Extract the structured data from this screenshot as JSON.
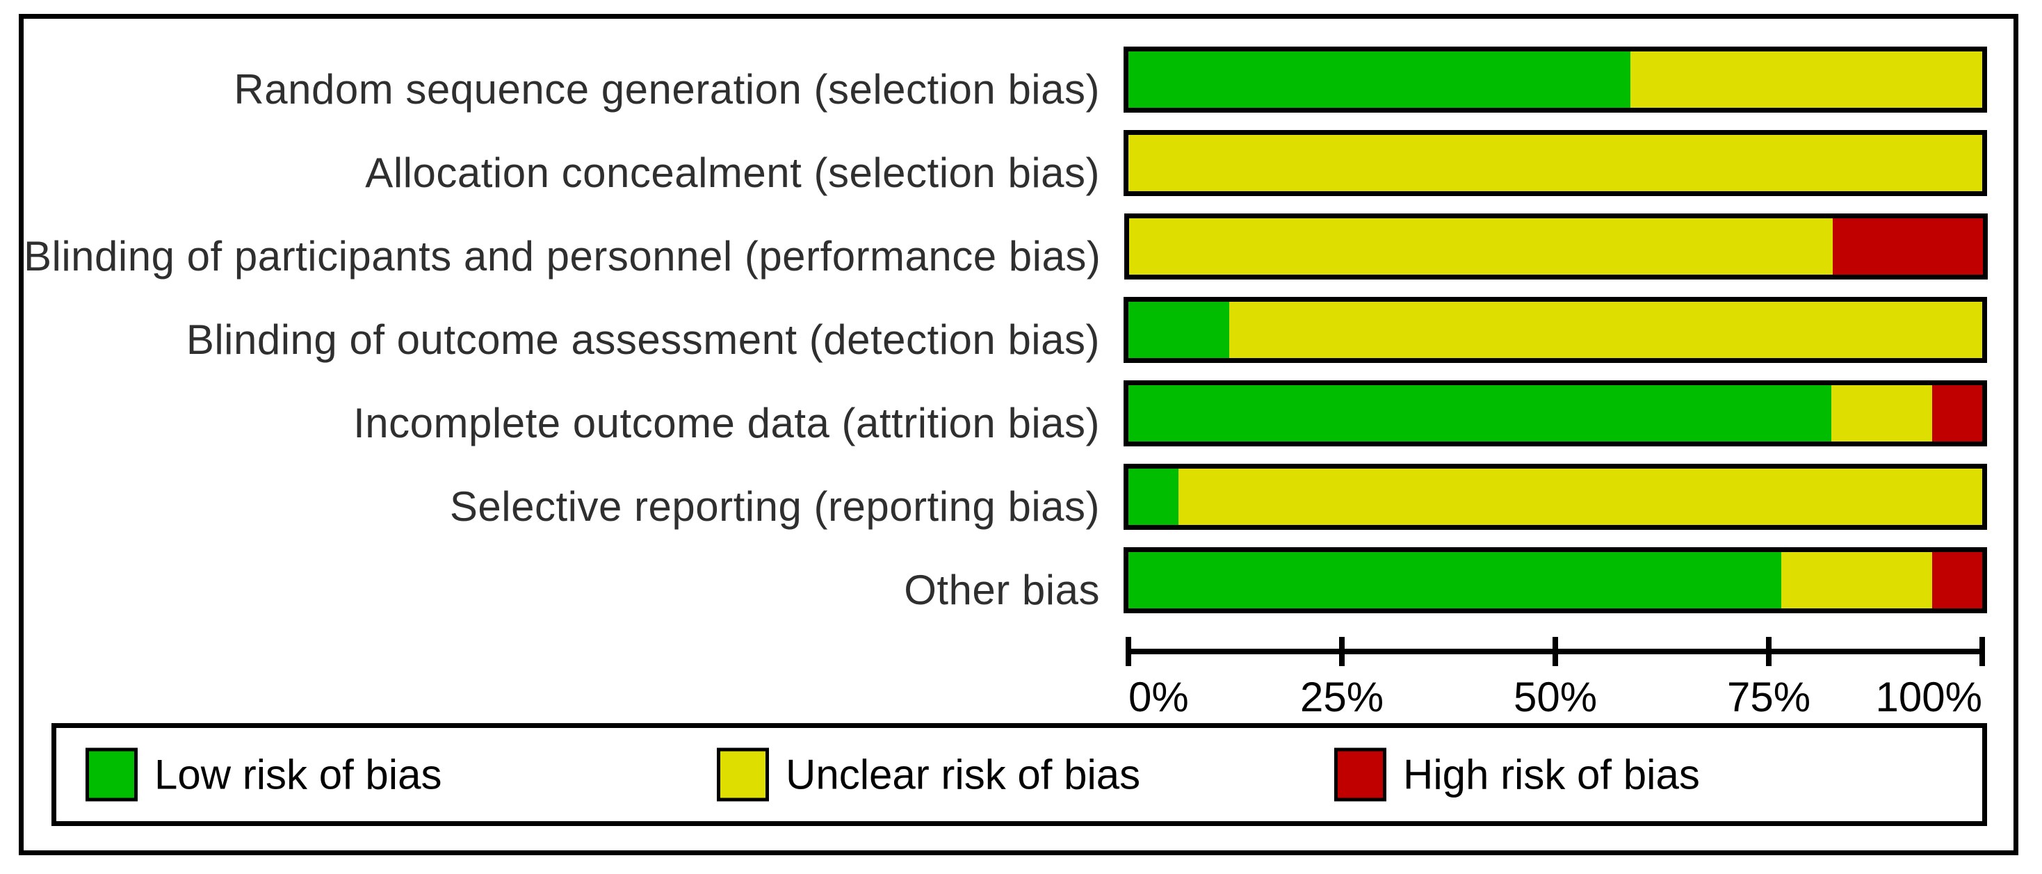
{
  "chart_data": {
    "type": "bar",
    "variant": "horizontal-stacked-100-percent",
    "description": "Risk of bias graph: review authors' judgements about each risk of bias item presented as percentages across all included studies",
    "categories": [
      "Random sequence generation (selection bias)",
      "Allocation concealment (selection bias)",
      "Blinding of participants and personnel (performance bias)",
      "Blinding of outcome assessment (detection bias)",
      "Incomplete outcome data (attrition bias)",
      "Selective reporting (reporting bias)",
      "Other bias"
    ],
    "series": [
      {
        "key": "low",
        "name": "Low risk of bias",
        "color": "#00bd00",
        "values": [
          58.8,
          0,
          0,
          11.8,
          82.4,
          5.9,
          76.5
        ]
      },
      {
        "key": "unclear",
        "name": "Unclear risk of bias",
        "color": "#dede00",
        "values": [
          41.2,
          100,
          82.4,
          88.2,
          11.8,
          94.1,
          17.6
        ]
      },
      {
        "key": "high",
        "name": "High risk of bias",
        "color": "#c00000",
        "values": [
          0,
          0,
          17.6,
          0,
          5.9,
          0,
          5.9
        ]
      }
    ],
    "xlabel": "",
    "ylabel": "",
    "xlim": [
      0,
      100
    ],
    "x_ticks": [
      {
        "value": 0,
        "label": "0%"
      },
      {
        "value": 25,
        "label": "25%"
      },
      {
        "value": 50,
        "label": "50%"
      },
      {
        "value": 75,
        "label": "75%"
      },
      {
        "value": 100,
        "label": "100%"
      }
    ],
    "grid": false,
    "legend_position": "bottom",
    "legend_entries": [
      "Low risk of bias",
      "Unclear risk of bias",
      "High risk of bias"
    ]
  },
  "colors": {
    "low_risk": "#00bd00",
    "unclear_risk": "#dede00",
    "high_risk": "#c00000",
    "border": "#000000",
    "background": "#ffffff"
  }
}
